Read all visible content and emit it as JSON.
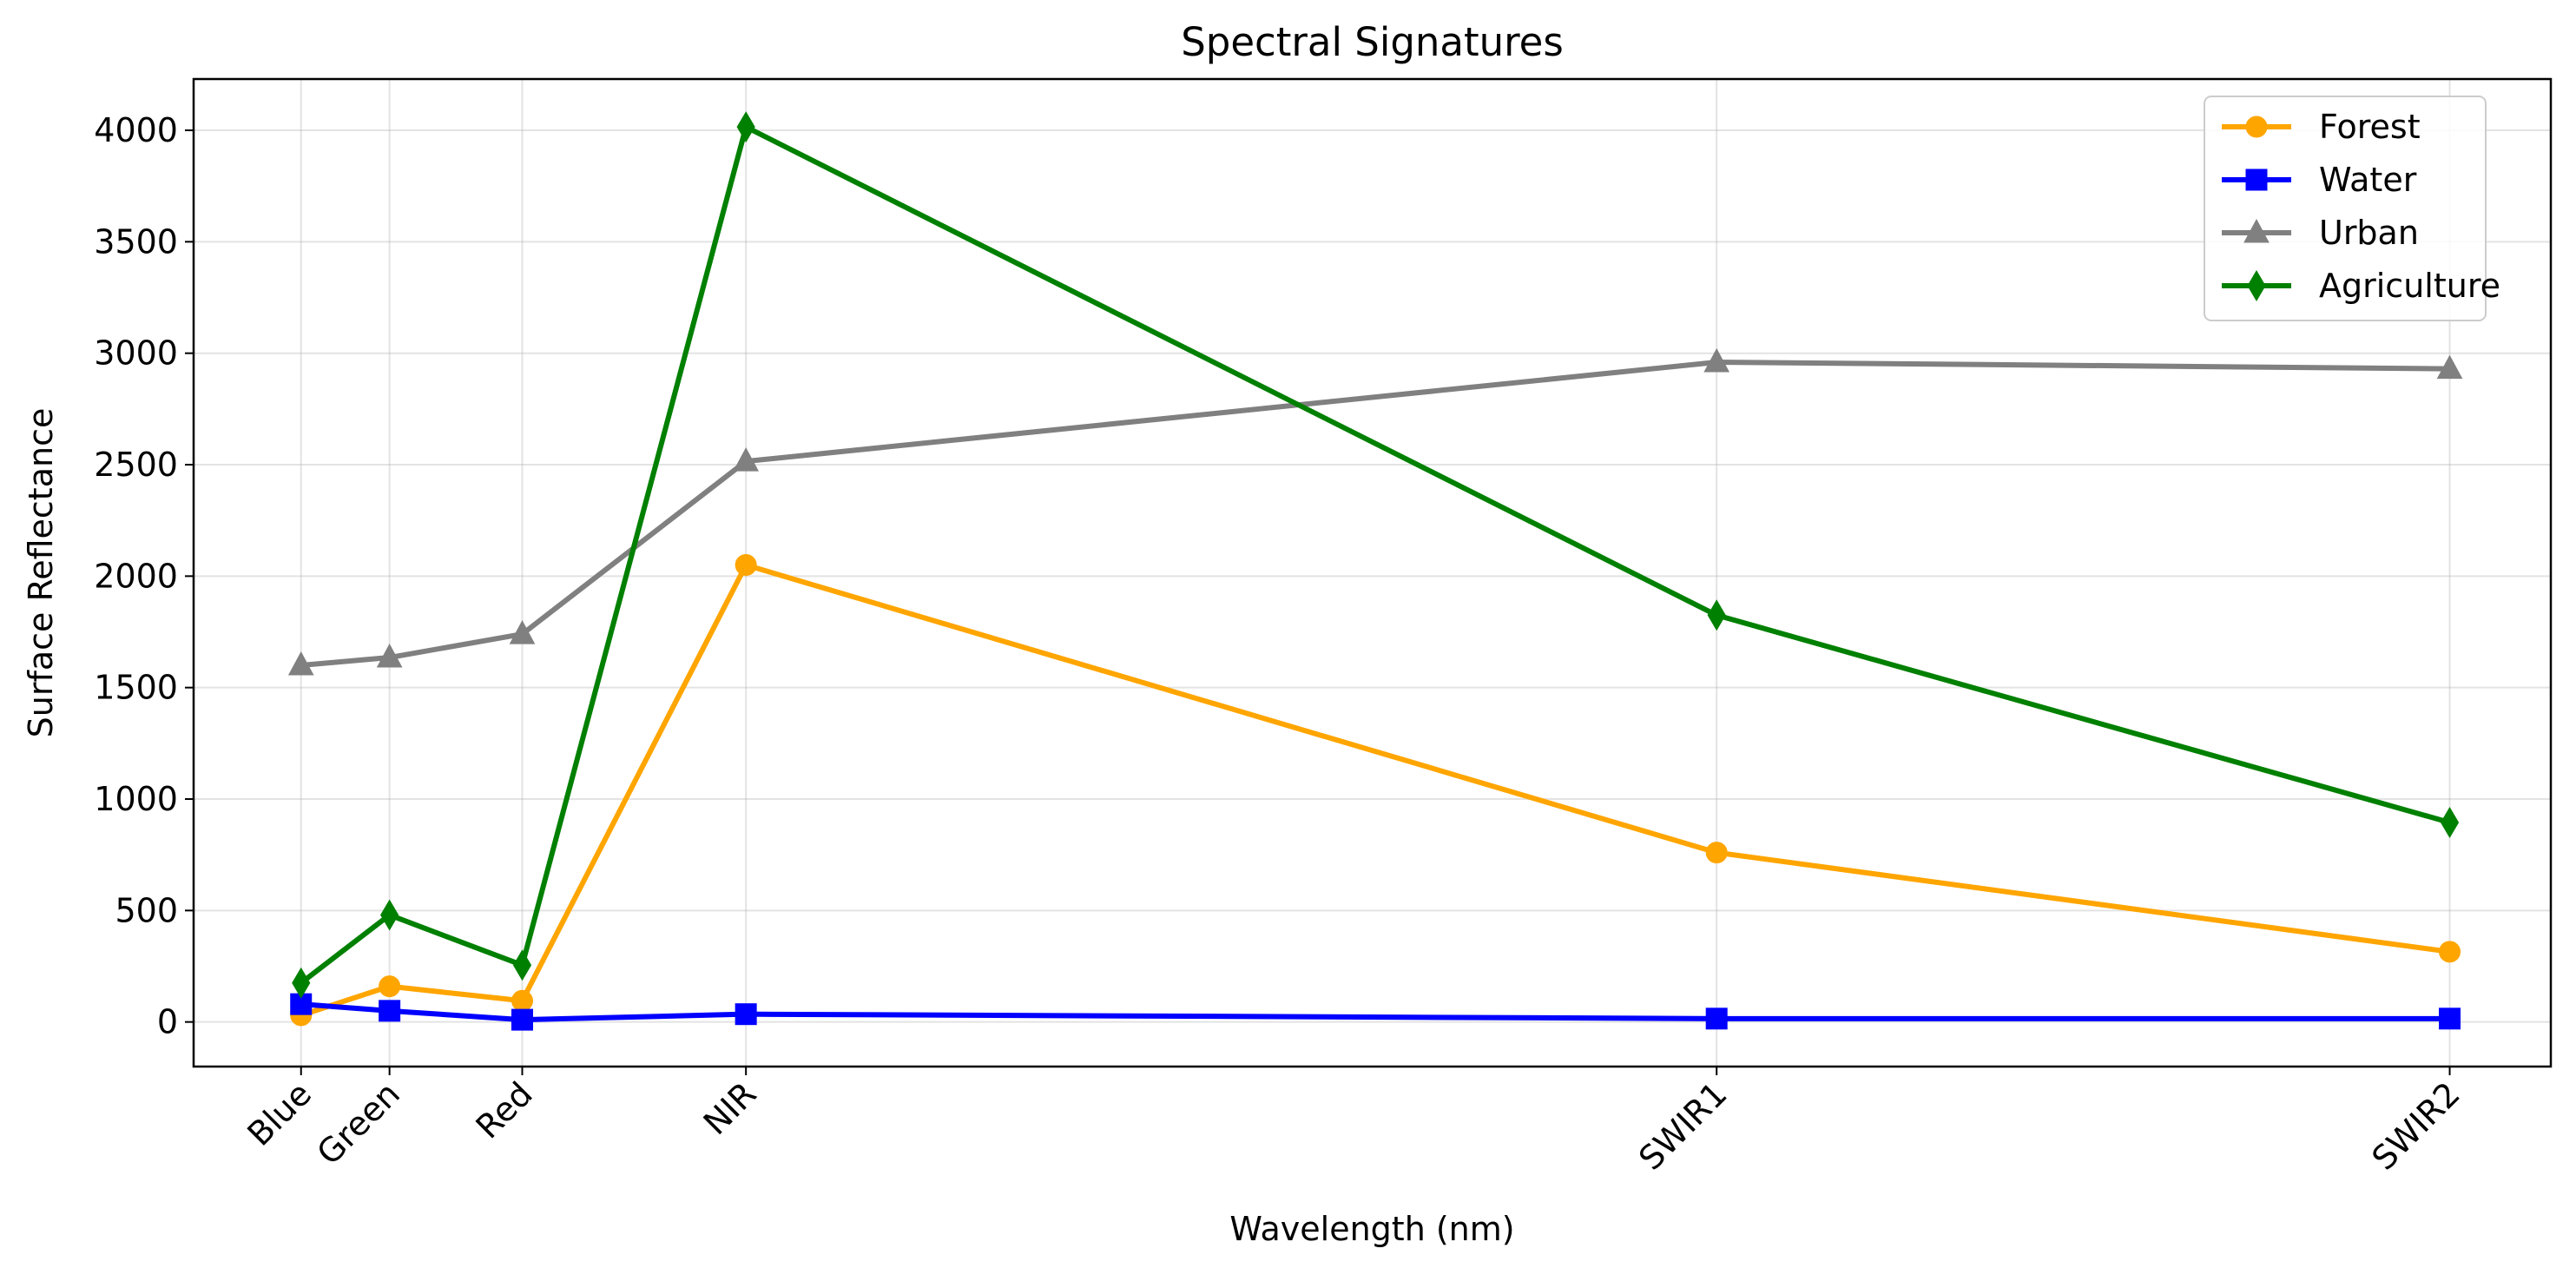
{
  "chart_data": {
    "type": "line",
    "title": "Spectral Signatures",
    "xlabel": "Wavelength (nm)",
    "ylabel": "Surface Reflectance",
    "categories": [
      "Blue",
      "Green",
      "Red",
      "NIR",
      "SWIR1",
      "SWIR2"
    ],
    "x": [
      490,
      560,
      665,
      842,
      1610,
      2190
    ],
    "xlim": [
      405,
      2270
    ],
    "ylim": [
      -200,
      4230
    ],
    "yticks": [
      0,
      500,
      1000,
      1500,
      2000,
      2500,
      3000,
      3500,
      4000
    ],
    "grid": true,
    "legend_position": "top-right",
    "series": [
      {
        "name": "Forest",
        "color": "#ffa500",
        "marker": "circle",
        "values": [
          30,
          160,
          95,
          2050,
          760,
          315
        ]
      },
      {
        "name": "Water",
        "color": "#0000ff",
        "marker": "square",
        "values": [
          80,
          50,
          10,
          35,
          15,
          15
        ]
      },
      {
        "name": "Urban",
        "color": "#808080",
        "marker": "triangle",
        "values": [
          1600,
          1635,
          1740,
          2515,
          2960,
          2930
        ]
      },
      {
        "name": "Agriculture",
        "color": "#008000",
        "marker": "diamond",
        "values": [
          175,
          480,
          255,
          4015,
          1825,
          895
        ]
      }
    ]
  }
}
